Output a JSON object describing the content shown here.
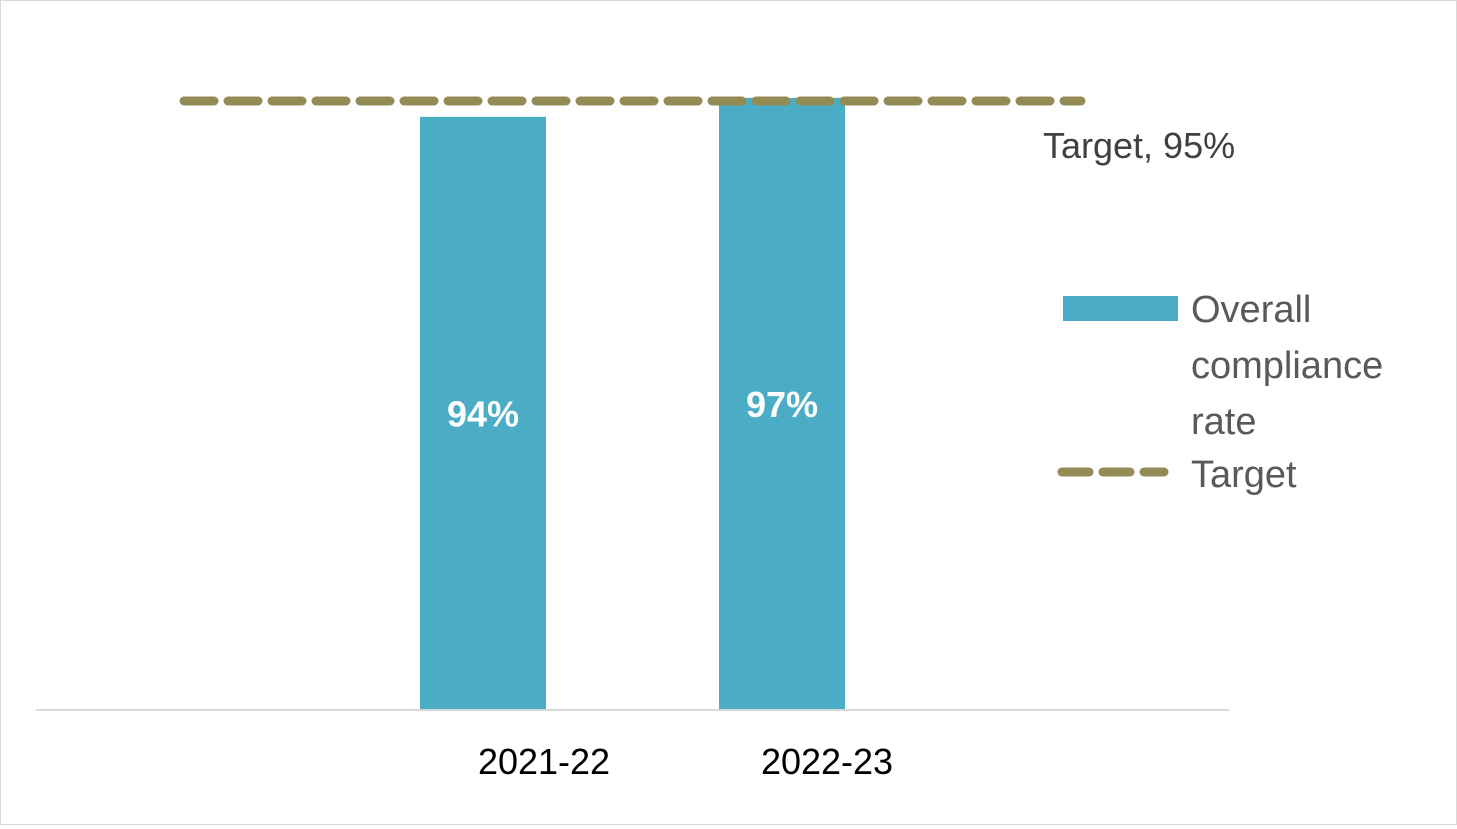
{
  "chart_data": {
    "type": "bar",
    "categories": [
      "2021-22",
      "2022-23"
    ],
    "series": [
      {
        "name": "Overall compliance rate",
        "values": [
          94,
          97
        ],
        "data_labels": [
          "94%",
          "97%"
        ]
      }
    ],
    "reference_lines": [
      {
        "name": "Target",
        "value": 95,
        "label": "Target, 95%",
        "style": "dashed"
      }
    ],
    "legend": {
      "placement": "right",
      "entries": [
        {
          "lines": [
            "Overall",
            "compliance",
            "rate"
          ],
          "kind": "bar"
        },
        {
          "lines": [
            "Target"
          ],
          "kind": "dashed-line"
        }
      ]
    },
    "colors": {
      "bar": "#4bacc6",
      "target": "#948a54",
      "axis": "#d9d9d9"
    },
    "ylim": [
      0,
      100
    ],
    "grid": false,
    "title": "",
    "xlabel": "",
    "ylabel": ""
  }
}
